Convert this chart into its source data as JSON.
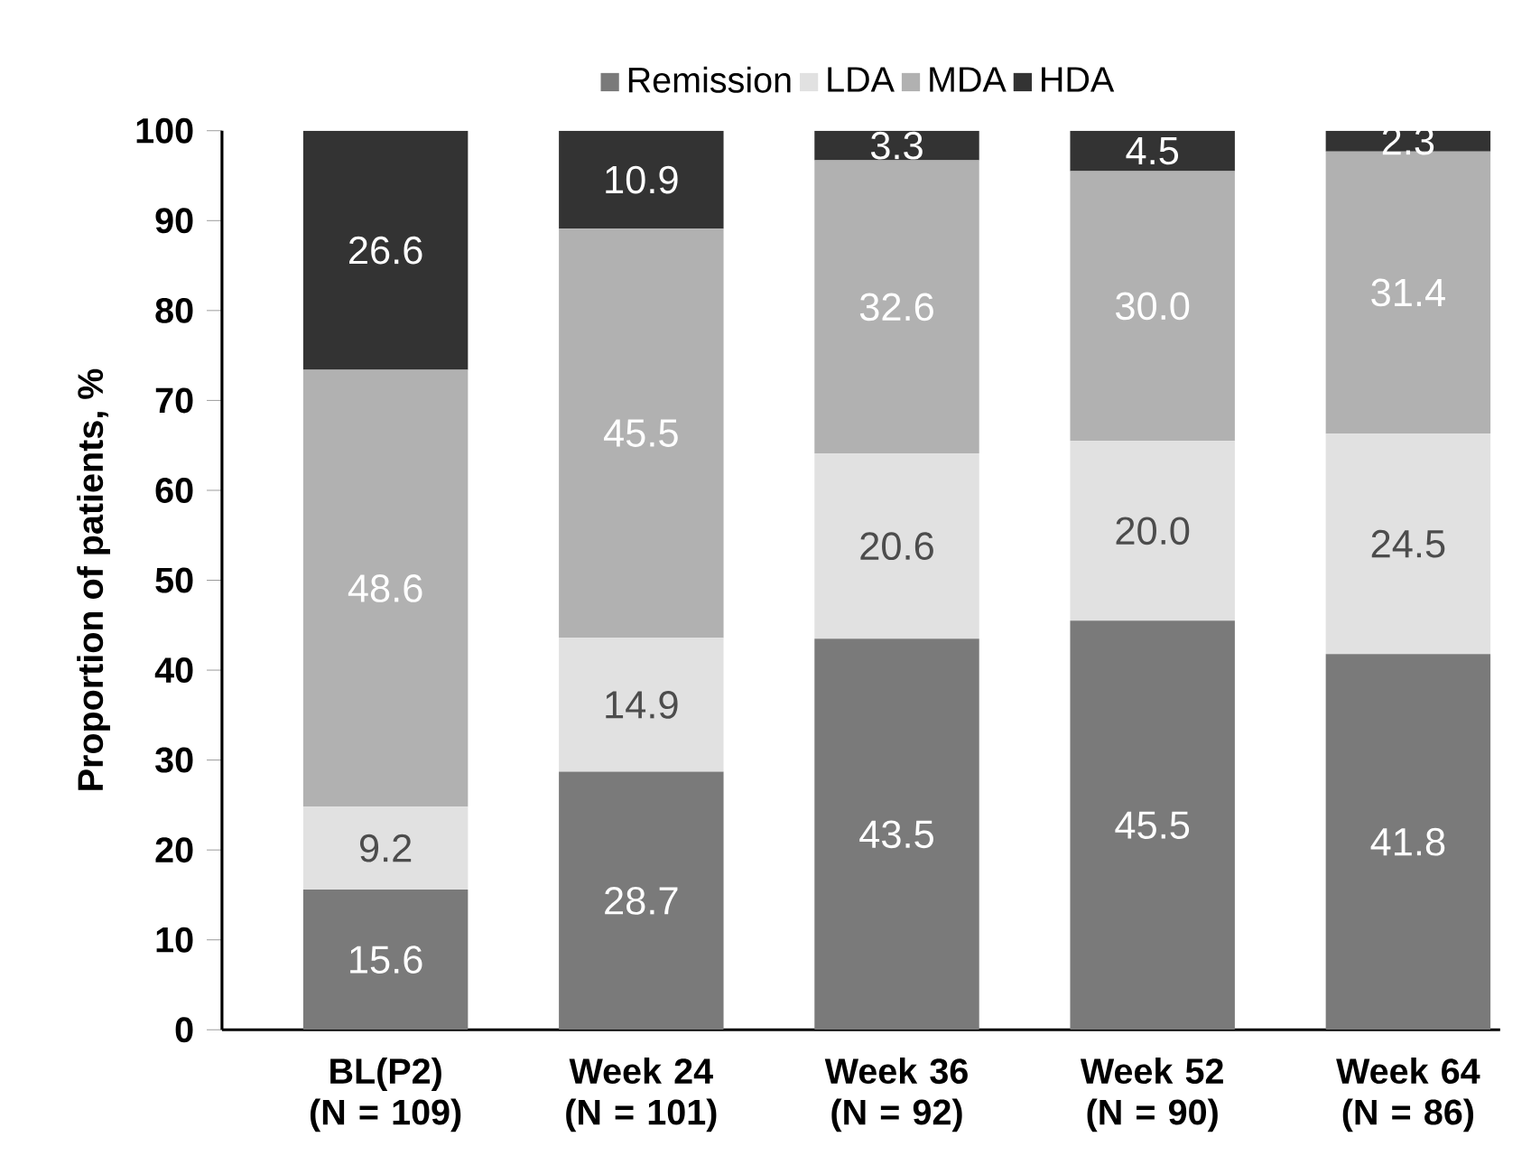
{
  "chart_data": {
    "type": "bar",
    "stacked": true,
    "ylabel": "Proportion of patients, %",
    "categories": [
      "BL(P2) (N = 109)",
      "Week 24 (N = 101)",
      "Week 36 (N = 92)",
      "Week 52 (N = 90)",
      "Week 64 (N = 86)"
    ],
    "series": [
      {
        "name": "Remission",
        "color": "#7a7a7a",
        "values": [
          15.6,
          28.7,
          43.5,
          45.5,
          41.8
        ],
        "value_labels": [
          "15.6",
          "28.7",
          "43.5",
          "45.5",
          "41.8"
        ]
      },
      {
        "name": "LDA",
        "color": "#e1e1e1",
        "values": [
          9.2,
          14.9,
          20.6,
          20.0,
          24.5
        ],
        "value_labels": [
          "9.2",
          "14.9",
          "20.6",
          "20.0",
          "24.5"
        ]
      },
      {
        "name": "MDA",
        "color": "#b1b1b1",
        "values": [
          48.6,
          45.5,
          32.6,
          30.0,
          31.4
        ],
        "value_labels": [
          "48.6",
          "45.5",
          "32.6",
          "30.0",
          "31.4"
        ]
      },
      {
        "name": "HDA",
        "color": "#333333",
        "values": [
          26.6,
          10.9,
          3.3,
          4.5,
          2.3
        ],
        "value_labels": [
          "26.6",
          "10.9",
          "3.3",
          "4.5",
          "2.3"
        ]
      }
    ],
    "ylim": [
      0,
      100
    ],
    "yticks": [
      0,
      10,
      20,
      30,
      40,
      50,
      60,
      70,
      80,
      90,
      100
    ],
    "legend": "top"
  }
}
